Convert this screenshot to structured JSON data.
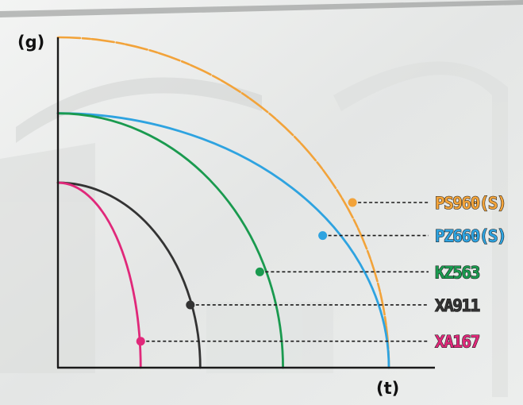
{
  "chart_data": {
    "type": "line",
    "title": "",
    "xlabel": "(t)",
    "ylabel": "(g)",
    "xlim": [
      0,
      100
    ],
    "ylim": [
      0,
      100
    ],
    "grid": false,
    "legend": "right, labels connected to curves by dashed lines",
    "series": [
      {
        "name": "PS960(S)",
        "color": "#f2a33a",
        "y_intercept": 100,
        "x_intercept": 100,
        "marker": {
          "x": 89,
          "y": 50
        },
        "style": "dashed-light"
      },
      {
        "name": "PZ660(S)",
        "color": "#2ea3e0",
        "y_intercept": 77,
        "x_intercept": 100,
        "marker": {
          "x": 80,
          "y": 40
        },
        "style": "solid"
      },
      {
        "name": "KZ563",
        "color": "#1a9a4f",
        "y_intercept": 77,
        "x_intercept": 68,
        "marker": {
          "x": 61,
          "y": 29
        },
        "style": "solid"
      },
      {
        "name": "XA911",
        "color": "#333333",
        "y_intercept": 56,
        "x_intercept": 43,
        "marker": {
          "x": 40,
          "y": 19
        },
        "style": "solid"
      },
      {
        "name": "XA167",
        "color": "#e0287a",
        "y_intercept": 56,
        "x_intercept": 25,
        "marker": {
          "x": 25,
          "y": 8
        },
        "style": "solid"
      }
    ]
  }
}
